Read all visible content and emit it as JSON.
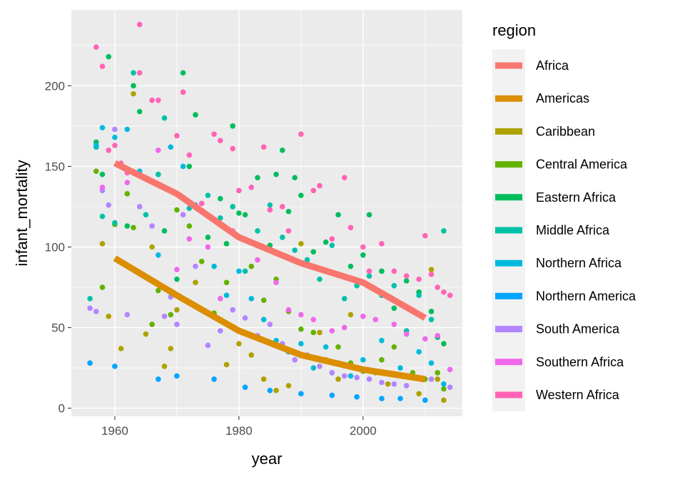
{
  "chart_data": {
    "type": "scatter",
    "xlabel": "year",
    "ylabel": "infant_mortality",
    "xlim": [
      1953,
      2016
    ],
    "ylim": [
      -5,
      247
    ],
    "x_ticks": [
      1960,
      1980,
      2000
    ],
    "y_ticks": [
      0,
      50,
      100,
      150,
      200
    ],
    "grid": true,
    "legend": {
      "title": "region",
      "position": "right"
    },
    "series": [
      {
        "name": "Africa",
        "color": "#F8766D",
        "trend": {
          "x": [
            1960,
            1970,
            1980,
            1990,
            2000,
            2010
          ],
          "y": [
            152,
            133,
            106,
            90,
            78,
            56
          ]
        }
      },
      {
        "name": "Americas",
        "color": "#DB8E00",
        "trend": {
          "x": [
            1960,
            1970,
            1980,
            1990,
            2000,
            2010
          ],
          "y": [
            93,
            70,
            48,
            33,
            24,
            18
          ]
        }
      },
      {
        "name": "Caribbean",
        "color": "#AEA200",
        "points": [
          [
            1958,
            102
          ],
          [
            1959,
            57
          ],
          [
            1961,
            37
          ],
          [
            1963,
            195
          ],
          [
            1965,
            46
          ],
          [
            1966,
            100
          ],
          [
            1968,
            26
          ],
          [
            1969,
            37
          ],
          [
            1970,
            61
          ],
          [
            1973,
            78
          ],
          [
            1978,
            27
          ],
          [
            1980,
            40
          ],
          [
            1982,
            33
          ],
          [
            1984,
            18
          ],
          [
            1986,
            11
          ],
          [
            1988,
            14
          ],
          [
            1990,
            102
          ],
          [
            1993,
            47
          ],
          [
            1996,
            18
          ],
          [
            1998,
            58
          ],
          [
            2000,
            24
          ],
          [
            2002,
            22
          ],
          [
            2004,
            15
          ],
          [
            2007,
            20
          ],
          [
            2009,
            9
          ],
          [
            2011,
            86
          ],
          [
            2012,
            18
          ],
          [
            2013,
            5
          ]
        ]
      },
      {
        "name": "Central America",
        "color": "#64B200",
        "points": [
          [
            1957,
            147
          ],
          [
            1958,
            75
          ],
          [
            1960,
            114
          ],
          [
            1962,
            133
          ],
          [
            1963,
            112
          ],
          [
            1966,
            52
          ],
          [
            1967,
            73
          ],
          [
            1969,
            58
          ],
          [
            1970,
            123
          ],
          [
            1972,
            113
          ],
          [
            1974,
            91
          ],
          [
            1976,
            59
          ],
          [
            1978,
            78
          ],
          [
            1980,
            48
          ],
          [
            1982,
            88
          ],
          [
            1984,
            67
          ],
          [
            1986,
            80
          ],
          [
            1988,
            60
          ],
          [
            1990,
            49
          ],
          [
            1992,
            47
          ],
          [
            1994,
            30
          ],
          [
            1996,
            38
          ],
          [
            1998,
            28
          ],
          [
            2000,
            23
          ],
          [
            2003,
            30
          ],
          [
            2005,
            38
          ],
          [
            2008,
            22
          ],
          [
            2010,
            18
          ],
          [
            2012,
            22
          ],
          [
            2013,
            12
          ]
        ]
      },
      {
        "name": "Eastern Africa",
        "color": "#00BD5C",
        "points": [
          [
            1957,
            165
          ],
          [
            1958,
            145
          ],
          [
            1959,
            218
          ],
          [
            1962,
            113
          ],
          [
            1963,
            200
          ],
          [
            1964,
            184
          ],
          [
            1967,
            145
          ],
          [
            1968,
            110
          ],
          [
            1970,
            80
          ],
          [
            1971,
            208
          ],
          [
            1972,
            150
          ],
          [
            1973,
            182
          ],
          [
            1975,
            106
          ],
          [
            1977,
            130
          ],
          [
            1978,
            102
          ],
          [
            1979,
            175
          ],
          [
            1980,
            121
          ],
          [
            1981,
            120
          ],
          [
            1983,
            143
          ],
          [
            1985,
            101
          ],
          [
            1986,
            145
          ],
          [
            1987,
            160
          ],
          [
            1988,
            122
          ],
          [
            1989,
            143
          ],
          [
            1990,
            132
          ],
          [
            1992,
            97
          ],
          [
            1994,
            103
          ],
          [
            1996,
            120
          ],
          [
            1998,
            88
          ],
          [
            2000,
            95
          ],
          [
            2001,
            120
          ],
          [
            2003,
            85
          ],
          [
            2005,
            62
          ],
          [
            2007,
            79
          ],
          [
            2009,
            72
          ],
          [
            2011,
            60
          ],
          [
            2012,
            44
          ],
          [
            2013,
            40
          ]
        ]
      },
      {
        "name": "Middle Africa",
        "color": "#00C1A7",
        "points": [
          [
            1956,
            68
          ],
          [
            1957,
            162
          ],
          [
            1958,
            119
          ],
          [
            1960,
            115
          ],
          [
            1963,
            208
          ],
          [
            1965,
            120
          ],
          [
            1967,
            145
          ],
          [
            1968,
            180
          ],
          [
            1970,
            133
          ],
          [
            1972,
            124
          ],
          [
            1975,
            132
          ],
          [
            1977,
            118
          ],
          [
            1979,
            125
          ],
          [
            1981,
            85
          ],
          [
            1983,
            110
          ],
          [
            1985,
            126
          ],
          [
            1987,
            106
          ],
          [
            1989,
            98
          ],
          [
            1991,
            92
          ],
          [
            1993,
            80
          ],
          [
            1995,
            101
          ],
          [
            1997,
            68
          ],
          [
            1999,
            76
          ],
          [
            2001,
            82
          ],
          [
            2003,
            70
          ],
          [
            2005,
            76
          ],
          [
            2007,
            48
          ],
          [
            2009,
            70
          ],
          [
            2011,
            55
          ],
          [
            2013,
            110
          ]
        ]
      },
      {
        "name": "Northern Africa",
        "color": "#00BADE",
        "points": [
          [
            1957,
            163
          ],
          [
            1958,
            174
          ],
          [
            1960,
            168
          ],
          [
            1962,
            173
          ],
          [
            1964,
            147
          ],
          [
            1967,
            95
          ],
          [
            1969,
            162
          ],
          [
            1971,
            150
          ],
          [
            1973,
            126
          ],
          [
            1976,
            88
          ],
          [
            1978,
            70
          ],
          [
            1980,
            85
          ],
          [
            1982,
            68
          ],
          [
            1984,
            55
          ],
          [
            1986,
            42
          ],
          [
            1988,
            35
          ],
          [
            1990,
            40
          ],
          [
            1992,
            25
          ],
          [
            1994,
            38
          ],
          [
            1996,
            28
          ],
          [
            1998,
            20
          ],
          [
            2000,
            30
          ],
          [
            2003,
            42
          ],
          [
            2006,
            25
          ],
          [
            2009,
            35
          ],
          [
            2011,
            28
          ],
          [
            2013,
            15
          ]
        ]
      },
      {
        "name": "Northern America",
        "color": "#00A6FF",
        "points": [
          [
            1956,
            28
          ],
          [
            1960,
            26
          ],
          [
            1967,
            18
          ],
          [
            1970,
            20
          ],
          [
            1976,
            18
          ],
          [
            1981,
            13
          ],
          [
            1985,
            11
          ],
          [
            1990,
            9
          ],
          [
            1995,
            8
          ],
          [
            1999,
            7
          ],
          [
            2003,
            6
          ],
          [
            2006,
            6
          ],
          [
            2010,
            5
          ]
        ]
      },
      {
        "name": "South America",
        "color": "#B385FF",
        "points": [
          [
            1956,
            62
          ],
          [
            1957,
            60
          ],
          [
            1958,
            135
          ],
          [
            1959,
            126
          ],
          [
            1960,
            173
          ],
          [
            1962,
            58
          ],
          [
            1964,
            125
          ],
          [
            1966,
            113
          ],
          [
            1968,
            57
          ],
          [
            1969,
            69
          ],
          [
            1970,
            52
          ],
          [
            1971,
            120
          ],
          [
            1973,
            88
          ],
          [
            1975,
            39
          ],
          [
            1977,
            48
          ],
          [
            1979,
            61
          ],
          [
            1981,
            56
          ],
          [
            1983,
            45
          ],
          [
            1985,
            52
          ],
          [
            1987,
            40
          ],
          [
            1989,
            30
          ],
          [
            1991,
            33
          ],
          [
            1993,
            26
          ],
          [
            1995,
            22
          ],
          [
            1997,
            20
          ],
          [
            1999,
            19
          ],
          [
            2001,
            18
          ],
          [
            2003,
            16
          ],
          [
            2005,
            15
          ],
          [
            2007,
            14
          ],
          [
            2009,
            19
          ],
          [
            2011,
            18
          ],
          [
            2014,
            13
          ]
        ]
      },
      {
        "name": "Southern Africa",
        "color": "#EF67EB",
        "points": [
          [
            1958,
            137
          ],
          [
            1962,
            140
          ],
          [
            1967,
            160
          ],
          [
            1970,
            86
          ],
          [
            1972,
            105
          ],
          [
            1975,
            100
          ],
          [
            1977,
            68
          ],
          [
            1979,
            110
          ],
          [
            1983,
            92
          ],
          [
            1986,
            78
          ],
          [
            1988,
            61
          ],
          [
            1990,
            58
          ],
          [
            1992,
            55
          ],
          [
            1995,
            48
          ],
          [
            1997,
            50
          ],
          [
            2000,
            57
          ],
          [
            2002,
            55
          ],
          [
            2005,
            52
          ],
          [
            2007,
            46
          ],
          [
            2010,
            43
          ],
          [
            2012,
            45
          ],
          [
            2014,
            24
          ]
        ]
      },
      {
        "name": "Western Africa",
        "color": "#FF63B6",
        "points": [
          [
            1957,
            224
          ],
          [
            1958,
            212
          ],
          [
            1959,
            160
          ],
          [
            1960,
            163
          ],
          [
            1961,
            152
          ],
          [
            1962,
            146
          ],
          [
            1964,
            238
          ],
          [
            1964,
            208
          ],
          [
            1966,
            191
          ],
          [
            1967,
            191
          ],
          [
            1970,
            169
          ],
          [
            1971,
            196
          ],
          [
            1972,
            157
          ],
          [
            1974,
            127
          ],
          [
            1976,
            170
          ],
          [
            1977,
            166
          ],
          [
            1979,
            161
          ],
          [
            1980,
            135
          ],
          [
            1982,
            137
          ],
          [
            1984,
            162
          ],
          [
            1985,
            123
          ],
          [
            1987,
            125
          ],
          [
            1988,
            110
          ],
          [
            1990,
            170
          ],
          [
            1992,
            135
          ],
          [
            1993,
            138
          ],
          [
            1995,
            105
          ],
          [
            1997,
            143
          ],
          [
            1998,
            112
          ],
          [
            2000,
            100
          ],
          [
            2001,
            85
          ],
          [
            2003,
            102
          ],
          [
            2005,
            85
          ],
          [
            2007,
            82
          ],
          [
            2009,
            80
          ],
          [
            2010,
            107
          ],
          [
            2011,
            83
          ],
          [
            2012,
            75
          ],
          [
            2013,
            72
          ],
          [
            2014,
            70
          ]
        ]
      }
    ]
  }
}
